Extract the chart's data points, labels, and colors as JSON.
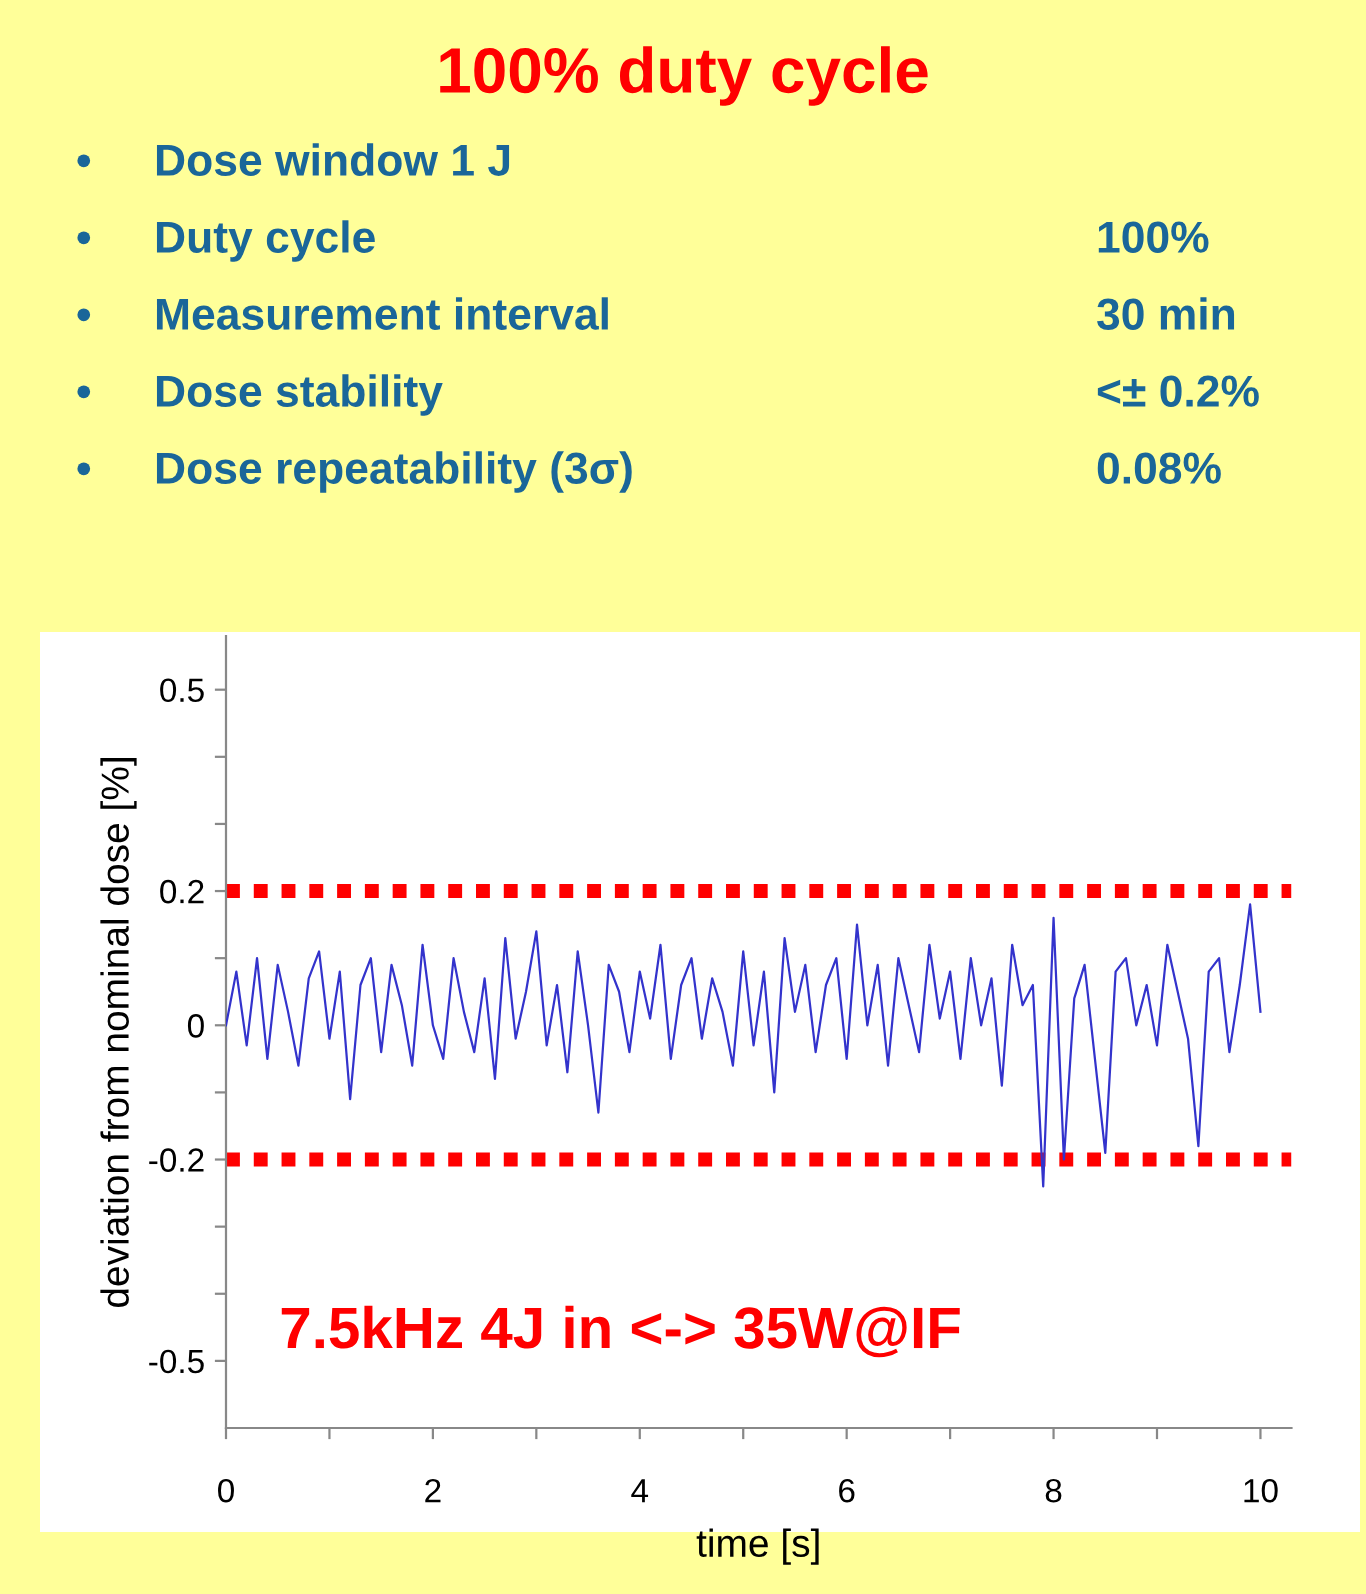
{
  "chart_data": {
    "type": "line",
    "title": "100% duty cycle",
    "xlabel": "time [s]",
    "ylabel": "deviation from nominal dose [%]",
    "annotations": [
      "•",
      "•",
      "•",
      "•",
      "•",
      "Dose window 1 J",
      "Duty cycle",
      "Measurement interval",
      "Dose stability",
      "Dose repeatability (3σ)",
      "100%",
      "30 min",
      "<± 0.2%",
      "0.08%",
      "7.5kHz 4J in <-> 35W@IF"
    ],
    "x": [
      0,
      0.1,
      0.2,
      0.3,
      0.4,
      0.5,
      0.6,
      0.7,
      0.8,
      0.9,
      1.0,
      1.1,
      1.2,
      1.3,
      1.4,
      1.5,
      1.6,
      1.7,
      1.8,
      1.9,
      2.0,
      2.1,
      2.2,
      2.3,
      2.4,
      2.5,
      2.6,
      2.7,
      2.8,
      2.9,
      3.0,
      3.1,
      3.2,
      3.3,
      3.4,
      3.5,
      3.6,
      3.7,
      3.8,
      3.9,
      4.0,
      4.1,
      4.2,
      4.3,
      4.4,
      4.5,
      4.6,
      4.7,
      4.8,
      4.9,
      5.0,
      5.1,
      5.2,
      5.3,
      5.4,
      5.5,
      5.6,
      5.7,
      5.8,
      5.9,
      6.0,
      6.1,
      6.2,
      6.3,
      6.4,
      6.5,
      6.6,
      6.7,
      6.8,
      6.9,
      7.0,
      7.1,
      7.2,
      7.3,
      7.4,
      7.5,
      7.6,
      7.7,
      7.8,
      7.9,
      8.0,
      8.1,
      8.2,
      8.3,
      8.4,
      8.5,
      8.6,
      8.7,
      8.8,
      8.9,
      9.0,
      9.1,
      9.2,
      9.3,
      9.4,
      9.5,
      9.6,
      9.7,
      9.8,
      9.9,
      10.0
    ],
    "series": [
      {
        "color": "#3333cc",
        "values": [
          0.0,
          0.08,
          -0.03,
          0.1,
          -0.05,
          0.09,
          0.02,
          -0.06,
          0.07,
          0.11,
          -0.02,
          0.08,
          -0.11,
          0.06,
          0.1,
          -0.04,
          0.09,
          0.03,
          -0.06,
          0.12,
          0.0,
          -0.05,
          0.1,
          0.02,
          -0.04,
          0.07,
          -0.08,
          0.13,
          -0.02,
          0.05,
          0.14,
          -0.03,
          0.06,
          -0.07,
          0.11,
          0.0,
          -0.13,
          0.09,
          0.05,
          -0.04,
          0.08,
          0.01,
          0.12,
          -0.05,
          0.06,
          0.1,
          -0.02,
          0.07,
          0.02,
          -0.06,
          0.11,
          -0.03,
          0.08,
          -0.1,
          0.13,
          0.02,
          0.09,
          -0.04,
          0.06,
          0.1,
          -0.05,
          0.15,
          0.0,
          0.09,
          -0.06,
          0.1,
          0.03,
          -0.04,
          0.12,
          0.01,
          0.08,
          -0.05,
          0.1,
          0.0,
          0.07,
          -0.09,
          0.12,
          0.03,
          0.06,
          -0.24,
          0.16,
          -0.2,
          0.04,
          0.09,
          -0.05,
          -0.19,
          0.08,
          0.1,
          0.0,
          0.06,
          -0.03,
          0.12,
          0.05,
          -0.02,
          -0.18,
          0.08,
          0.1,
          -0.04,
          0.06,
          0.18,
          0.02
        ]
      }
    ],
    "xlim": [
      0,
      10.3
    ],
    "ylim": [
      -0.6,
      0.58
    ],
    "xticks": [
      0,
      {
        "value": 1,
        "label": null
      },
      2,
      {
        "value": 3,
        "label": null
      },
      4,
      {
        "value": 5,
        "label": null
      },
      6,
      {
        "value": 7,
        "label": null
      },
      8,
      {
        "value": 9,
        "label": null
      },
      10
    ],
    "yticks": [
      0.5,
      {
        "value": 0.4,
        "label": null
      },
      {
        "value": 0.3,
        "label": null
      },
      0.2,
      {
        "value": 0.1,
        "label": null
      },
      0,
      {
        "value": -0.1,
        "label": null
      },
      -0.2,
      {
        "value": -0.3,
        "label": null
      },
      {
        "value": -0.4,
        "label": null
      },
      -0.5
    ],
    "ref_lines": [
      {
        "axis": "y",
        "value": 0.2,
        "color": "#ff0000",
        "line_style": "dotted"
      },
      {
        "axis": "y",
        "value": -0.2,
        "color": "#ff0000",
        "line_style": "dotted"
      }
    ],
    "grid": false,
    "marker": "none",
    "line_style": "solid"
  }
}
